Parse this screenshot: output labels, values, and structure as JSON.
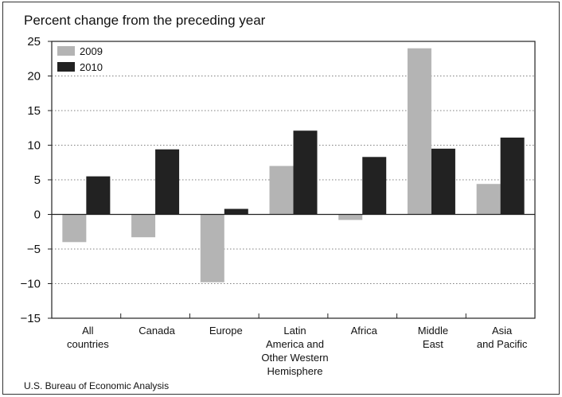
{
  "chart_data": {
    "type": "bar",
    "title": "Percent change from the preceding year",
    "categories": [
      [
        "All",
        "countries"
      ],
      [
        "Canada"
      ],
      [
        "Europe"
      ],
      [
        "Latin",
        "America and",
        "Other Western",
        "Hemisphere"
      ],
      [
        "Africa"
      ],
      [
        "Middle",
        "East"
      ],
      [
        "Asia",
        "and Pacific"
      ]
    ],
    "series": [
      {
        "name": "2009",
        "color": "#b4b4b4",
        "values": [
          -4.0,
          -3.3,
          -9.8,
          7.0,
          -0.8,
          24.0,
          4.4
        ]
      },
      {
        "name": "2010",
        "color": "#222222",
        "values": [
          5.5,
          9.4,
          0.8,
          12.1,
          8.3,
          9.5,
          11.1
        ]
      }
    ],
    "ylim": [
      -15,
      25
    ],
    "yticks": [
      "25",
      "20",
      "15",
      "10",
      "5",
      "0",
      "−5",
      "−10",
      "−15"
    ],
    "ytick_values": [
      25,
      20,
      15,
      10,
      5,
      0,
      -5,
      -10,
      -15
    ],
    "gridlines": "dotted",
    "legend_position": "top-left",
    "source": "U.S. Bureau of Economic Analysis"
  }
}
